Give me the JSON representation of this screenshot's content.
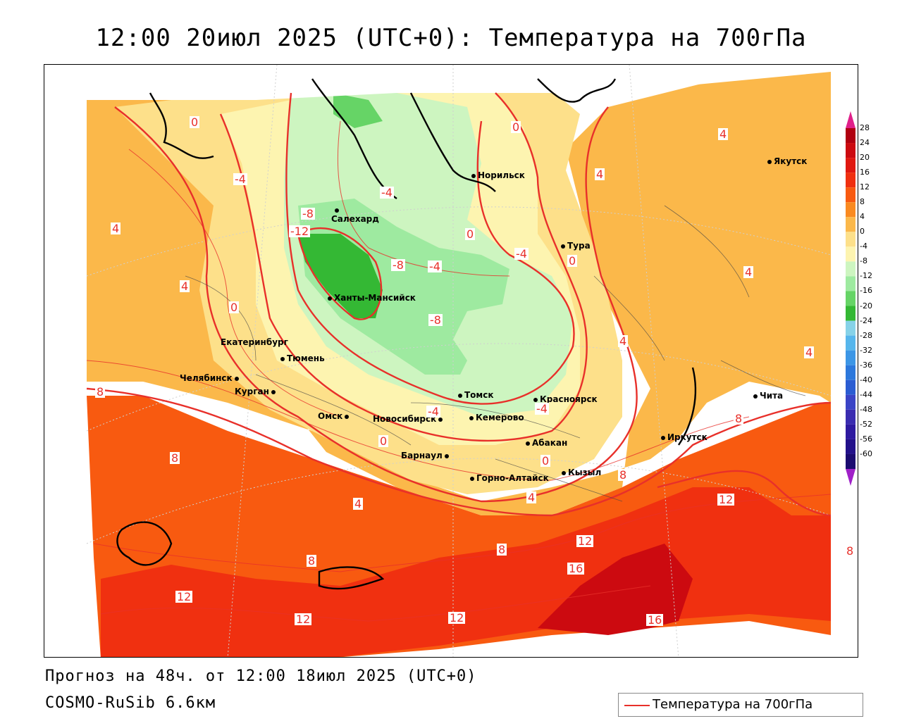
{
  "title": "12:00 20июл 2025 (UTC+0): Температура на 700гПа",
  "footer": {
    "forecast": "Прогноз на 48ч. от 12:00 18июл 2025 (UTC+0)",
    "model": "COSMO-RuSib 6.6км"
  },
  "legend": {
    "label": "Температура на 700гПа",
    "line_color": "#e8302a"
  },
  "colorbar": {
    "ticks": [
      "28",
      "24",
      "20",
      "16",
      "12",
      "8",
      "4",
      "0",
      "-4",
      "-8",
      "-12",
      "-16",
      "-20",
      "-24",
      "-28",
      "-32",
      "-36",
      "-40",
      "-44",
      "-48",
      "-52",
      "-56",
      "-60"
    ],
    "colors": [
      "#b00010",
      "#cc0a10",
      "#e01810",
      "#f03010",
      "#f85a10",
      "#fa8a20",
      "#fbb84a",
      "#fde08a",
      "#fdf4b0",
      "#cdf5c0",
      "#9eeaa0",
      "#66d466",
      "#34b834",
      "#86d2e8",
      "#56b6ec",
      "#3c96e6",
      "#2c78dc",
      "#2a5cd2",
      "#3a44c6",
      "#3a2cb0",
      "#2e1aa0",
      "#22108a",
      "#1a0a70"
    ]
  },
  "cities": [
    {
      "name": "Салехард"
    },
    {
      "name": "Норильск"
    },
    {
      "name": "Якутск"
    },
    {
      "name": "Тура"
    },
    {
      "name": "Ханты-Мансийск"
    },
    {
      "name": "Екатеринбург"
    },
    {
      "name": "Тюмень"
    },
    {
      "name": "Челябинск"
    },
    {
      "name": "Курган"
    },
    {
      "name": "Омск"
    },
    {
      "name": "Новосибирск"
    },
    {
      "name": "Томск"
    },
    {
      "name": "Красноярск"
    },
    {
      "name": "Кемерово"
    },
    {
      "name": "Барнаул"
    },
    {
      "name": "Абакан"
    },
    {
      "name": "Горно-Алтайск"
    },
    {
      "name": "Кызыл"
    },
    {
      "name": "Иркутск"
    },
    {
      "name": "Чита"
    }
  ],
  "contour_labels": [
    "0",
    "-4",
    "4",
    "4",
    "-8",
    "-12",
    "0",
    "-4",
    "0",
    "-8",
    "-8",
    "0",
    "-4",
    "0",
    "4",
    "4",
    "4",
    "-4",
    "-4",
    "0",
    "0",
    "4",
    "4",
    "8",
    "8",
    "8",
    "8",
    "8",
    "12",
    "12",
    "12",
    "12",
    "12",
    "16",
    "16",
    "-4",
    "4",
    "4",
    "8",
    "8"
  ]
}
